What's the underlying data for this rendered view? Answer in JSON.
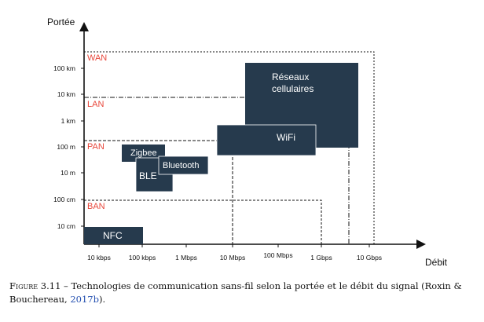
{
  "diagram": {
    "y_axis_title": "Portée",
    "x_axis_title": "Débit",
    "y_ticks": [
      "10 cm",
      "100 cm",
      "10 m",
      "100 m",
      "1 km",
      "10 km",
      "100 km"
    ],
    "x_ticks": [
      "10 kbps",
      "100 kbps",
      "1 Mbps",
      "10 Mbps",
      "100 Mbps",
      "1 Gbps",
      "10 Gbps"
    ],
    "zones": {
      "wan": "WAN",
      "lan": "LAN",
      "pan": "PAN",
      "ban": "BAN"
    },
    "technologies": {
      "cellular_line1": "Réseaux",
      "cellular_line2": "cellulaires",
      "wifi": "WiFi",
      "zigbee": "Zigbee",
      "ble": "BLE",
      "bluetooth": "Bluetooth",
      "nfc": "NFC"
    },
    "colors": {
      "box_fill": "#263a4d",
      "zone_label": "#e8473b"
    }
  },
  "caption": {
    "label": "Figure 3.11",
    "text": " – Technologies de communication sans-fil selon la portée et le débit du signal (Roxin & Bouchereau, ",
    "link": "2017b",
    "end": ")."
  }
}
